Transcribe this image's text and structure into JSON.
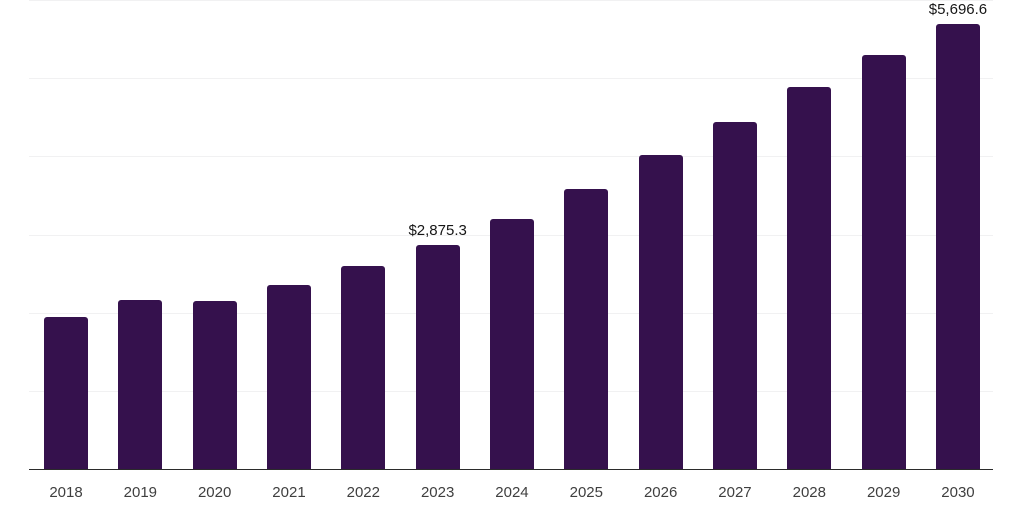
{
  "chart_data": {
    "type": "bar",
    "title": "",
    "xlabel": "",
    "ylabel": "",
    "categories": [
      "2018",
      "2019",
      "2020",
      "2021",
      "2022",
      "2023",
      "2024",
      "2025",
      "2026",
      "2027",
      "2028",
      "2029",
      "2030"
    ],
    "values": [
      1950,
      2166,
      2157,
      2366,
      2608,
      2875.3,
      3204,
      3583,
      4017,
      4446,
      4889,
      5302,
      5696.6
    ],
    "data_labels": {
      "2023": "$2,875.3",
      "2030": "$5,696.6"
    },
    "value_prefix": "$",
    "ylim": [
      0,
      6000
    ],
    "gridline_interval": 1000,
    "grid": true,
    "legend_position": "none",
    "colors": {
      "bar": "#35114d",
      "gridline": "#f1f1f2",
      "axis_line": "#2b2b2b",
      "tick_label": "#3f3f3f",
      "data_label": "#161616"
    }
  }
}
